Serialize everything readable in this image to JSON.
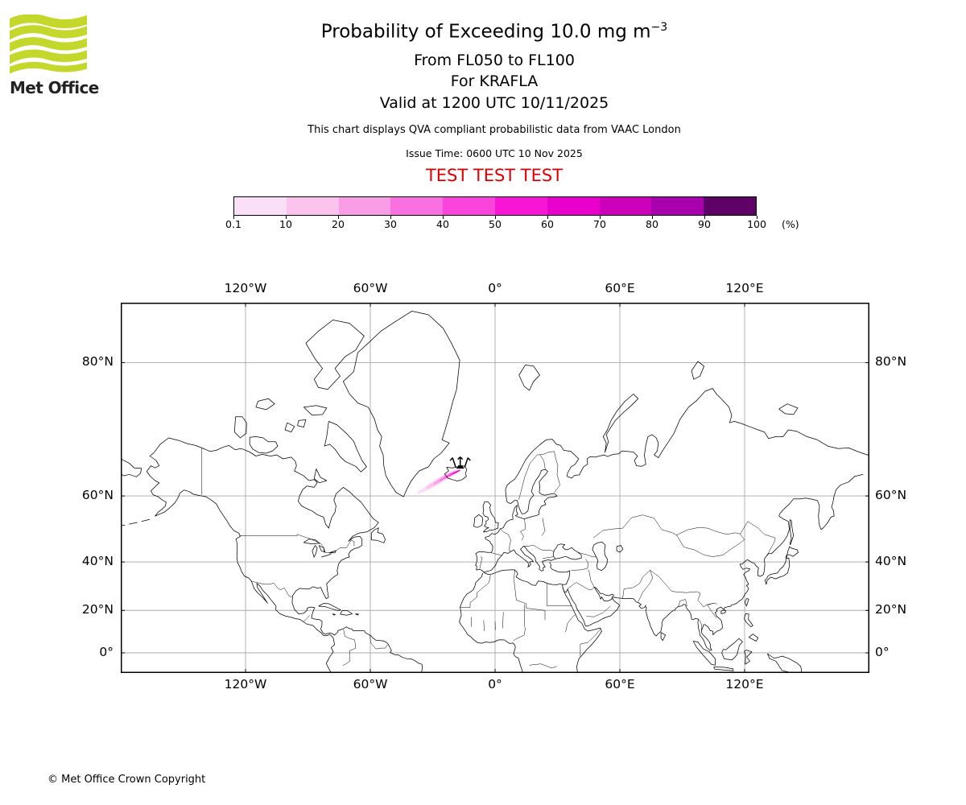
{
  "logo": {
    "text": "Met Office",
    "wave_color": "#c3d82b"
  },
  "header": {
    "title": "Probability of Exceeding 10.0 mg m",
    "title_exponent": "−3",
    "subtitle1": "From FL050 to FL100",
    "subtitle2": "For KRAFLA",
    "subtitle3": "Valid at 1200 UTC 10/11/2025",
    "disclaimer": "This chart displays QVA compliant probabilistic data from VAAC London",
    "issue_time": "Issue Time: 0600 UTC 10 Nov 2025",
    "test_banner": "TEST TEST TEST",
    "test_color": "#dd0000"
  },
  "colorbar": {
    "tick_labels": [
      "0.1",
      "10",
      "20",
      "30",
      "40",
      "50",
      "60",
      "70",
      "80",
      "90",
      "100"
    ],
    "unit": "(%)",
    "colors": [
      "#fbdff6",
      "#fbc3ee",
      "#f99de6",
      "#fa70e0",
      "#fb44db",
      "#f716d3",
      "#e800cd",
      "#cd00bc",
      "#a800ad",
      "#5f0266"
    ]
  },
  "chart_data": {
    "type": "map",
    "projection": "mercator",
    "lon_range": [
      -180,
      180
    ],
    "lat_range": [
      -9.6,
      84
    ],
    "grid_color": "#a9a9a9",
    "x_ticks": [
      {
        "lon": -120,
        "label": "120°W"
      },
      {
        "lon": -60,
        "label": "60°W"
      },
      {
        "lon": 0,
        "label": "0°"
      },
      {
        "lon": 60,
        "label": "60°E"
      },
      {
        "lon": 120,
        "label": "120°E"
      }
    ],
    "y_ticks": [
      {
        "lat": 80,
        "label": "80°N"
      },
      {
        "lat": 60,
        "label": "60°N"
      },
      {
        "lat": 40,
        "label": "40°N"
      },
      {
        "lat": 20,
        "label": "20°N"
      },
      {
        "lat": 0,
        "label": "0°"
      }
    ],
    "volcano": {
      "name": "KRAFLA",
      "lon": -16.75,
      "lat": 65.72
    },
    "plume_layers": [
      {
        "percent_min": 0.1,
        "color": "#fbdff6",
        "polygon": [
          [
            -16.5,
            65.85
          ],
          [
            -20,
            65.6
          ],
          [
            -24,
            64.9
          ],
          [
            -28,
            63.9
          ],
          [
            -32,
            62.7
          ],
          [
            -35,
            61.7
          ],
          [
            -37.3,
            61.0
          ],
          [
            -37.3,
            60.4
          ],
          [
            -35,
            60.8
          ],
          [
            -32,
            61.4
          ],
          [
            -28,
            62.4
          ],
          [
            -24,
            63.5
          ],
          [
            -20,
            64.5
          ],
          [
            -17,
            65.4
          ],
          [
            -16.5,
            65.85
          ]
        ]
      },
      {
        "percent_min": 10,
        "color": "#fbc3ee",
        "polygon": [
          [
            -16.6,
            65.8
          ],
          [
            -20,
            65.5
          ],
          [
            -24,
            64.8
          ],
          [
            -28,
            63.7
          ],
          [
            -31,
            62.8
          ],
          [
            -33,
            62.1
          ],
          [
            -33,
            61.6
          ],
          [
            -31,
            62.0
          ],
          [
            -28,
            62.6
          ],
          [
            -24,
            63.7
          ],
          [
            -20,
            64.7
          ],
          [
            -17,
            65.45
          ],
          [
            -16.6,
            65.8
          ]
        ]
      },
      {
        "percent_min": 20,
        "color": "#f99de6",
        "polygon": [
          [
            -16.7,
            65.78
          ],
          [
            -20,
            65.4
          ],
          [
            -23.5,
            64.7
          ],
          [
            -26.5,
            63.9
          ],
          [
            -29.5,
            62.9
          ],
          [
            -29.5,
            62.5
          ],
          [
            -26.5,
            63.3
          ],
          [
            -23.5,
            64.1
          ],
          [
            -20,
            64.85
          ],
          [
            -17.1,
            65.45
          ],
          [
            -16.7,
            65.78
          ]
        ]
      },
      {
        "percent_min": 30,
        "color": "#fa70e0",
        "polygon": [
          [
            -16.7,
            65.75
          ],
          [
            -19.5,
            65.35
          ],
          [
            -22.5,
            64.75
          ],
          [
            -26.5,
            63.6
          ],
          [
            -26.5,
            63.3
          ],
          [
            -23,
            64.2
          ],
          [
            -19.8,
            64.95
          ],
          [
            -17.1,
            65.5
          ],
          [
            -16.7,
            65.75
          ]
        ]
      },
      {
        "percent_min": 40,
        "color": "#fb44db",
        "polygon": [
          [
            -16.7,
            65.72
          ],
          [
            -19,
            65.3
          ],
          [
            -21.5,
            64.85
          ],
          [
            -24,
            64.15
          ],
          [
            -24,
            63.9
          ],
          [
            -21.5,
            64.55
          ],
          [
            -19,
            65.05
          ],
          [
            -17.1,
            65.52
          ],
          [
            -16.7,
            65.72
          ]
        ]
      },
      {
        "percent_min": 50,
        "color": "#f716d3",
        "polygon": [
          [
            -16.7,
            65.7
          ],
          [
            -18.8,
            65.35
          ],
          [
            -20.5,
            65.05
          ],
          [
            -22,
            64.6
          ],
          [
            -22,
            64.4
          ],
          [
            -20.3,
            64.9
          ],
          [
            -18.5,
            65.15
          ],
          [
            -17.1,
            65.54
          ],
          [
            -16.7,
            65.7
          ]
        ]
      },
      {
        "percent_min": 60,
        "color": "#e800cd",
        "polygon": [
          [
            -16.75,
            65.68
          ],
          [
            -18.3,
            65.42
          ],
          [
            -19.5,
            65.2
          ],
          [
            -20.3,
            64.95
          ],
          [
            -20.3,
            64.8
          ],
          [
            -19.2,
            65.05
          ],
          [
            -18,
            65.25
          ],
          [
            -17.1,
            65.55
          ],
          [
            -16.75,
            65.68
          ]
        ]
      },
      {
        "percent_min": 70,
        "color": "#cd00bc",
        "polygon": [
          [
            -16.8,
            65.66
          ],
          [
            -17.8,
            65.5
          ],
          [
            -19,
            65.2
          ],
          [
            -19,
            65.1
          ],
          [
            -17.9,
            65.35
          ],
          [
            -17.1,
            65.56
          ],
          [
            -16.8,
            65.66
          ]
        ]
      },
      {
        "percent_min": 80,
        "color": "#a800ad",
        "polygon": [
          [
            -16.8,
            65.64
          ],
          [
            -17.5,
            65.52
          ],
          [
            -18.2,
            65.35
          ],
          [
            -18.2,
            65.3
          ],
          [
            -17.5,
            65.44
          ],
          [
            -17,
            65.57
          ],
          [
            -16.8,
            65.64
          ]
        ]
      },
      {
        "percent_min": 90,
        "color": "#5f0266",
        "polygon": [
          [
            -16.75,
            65.62
          ],
          [
            -17.2,
            65.5
          ],
          [
            -17.6,
            65.4
          ],
          [
            -17.6,
            65.36
          ],
          [
            -17.1,
            65.48
          ],
          [
            -16.8,
            65.56
          ],
          [
            -16.75,
            65.62
          ]
        ]
      }
    ],
    "plume_specks": [
      {
        "lon": -38.5,
        "lat": 60.3,
        "r": 0.9,
        "color": "#fbdff6"
      },
      {
        "lon": -36.2,
        "lat": 61.9,
        "r": 0.7,
        "color": "#fbdff6"
      },
      {
        "lon": -30.5,
        "lat": 61.2,
        "r": 0.7,
        "color": "#fbc3ee"
      }
    ]
  },
  "footer": {
    "copyright": "© Met Office Crown Copyright"
  }
}
